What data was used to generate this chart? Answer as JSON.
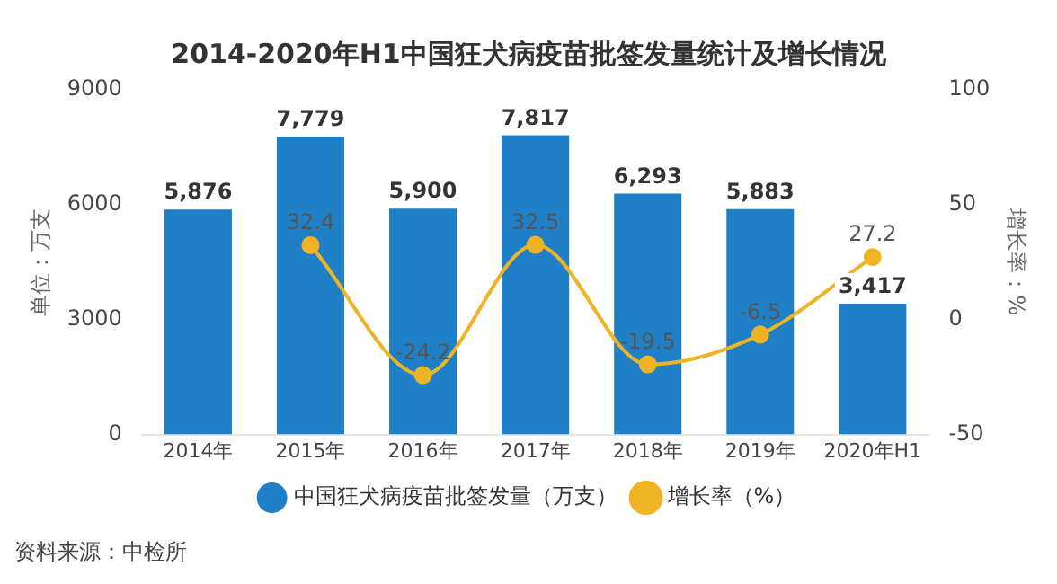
{
  "chart_data": {
    "type": "bar",
    "title": "2014-2020年H1中国狂犬病疫苗批签发量统计及增长情况",
    "ylabel": "单位：万支",
    "y2label": "增长率：%",
    "categories": [
      "2014年",
      "2015年",
      "2016年",
      "2017年",
      "2018年",
      "2019年",
      "2020年H1"
    ],
    "series": [
      {
        "name": "中国狂犬病疫苗批签发量（万支）",
        "color": "#1f80c8",
        "values": [
          5876,
          7779,
          5900,
          7817,
          6293,
          5883,
          3417
        ],
        "value_labels": [
          "5,876",
          "7,779",
          "5,900",
          "7,817",
          "6,293",
          "5,883",
          "3,417"
        ]
      },
      {
        "name": "增长率（%）",
        "type": "line",
        "axis": "y2",
        "color": "#f0b323",
        "marker": "circle",
        "values": [
          null,
          32.4,
          -24.2,
          32.5,
          -19.5,
          -6.5,
          27.2
        ],
        "value_labels": [
          null,
          "32.4",
          "-24.2",
          "32.5",
          "-19.5",
          "-6.5",
          "27.2"
        ]
      }
    ],
    "ylim": [
      0,
      9000
    ],
    "yticks": [
      0,
      3000,
      6000,
      9000
    ],
    "y2lim": [
      -50,
      100
    ],
    "y2ticks": [
      -50,
      0,
      50,
      100
    ],
    "grid": false,
    "legend": "bottom",
    "annotations": [
      "资料来源：中检所"
    ]
  }
}
